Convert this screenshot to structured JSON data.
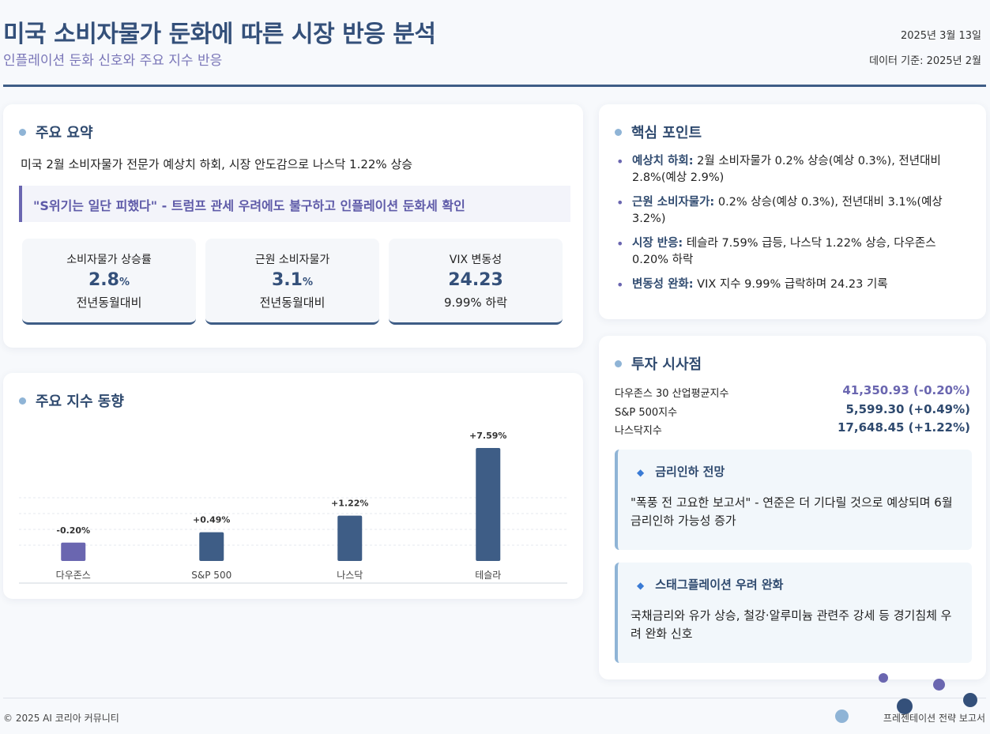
{
  "header": {
    "title": "미국 소비자물가 둔화에 따른 시장 반응 분석",
    "subtitle": "인플레이션 둔화 신호와 주요 지수 반응",
    "date": "2025년 3월 13일",
    "data_basis": "데이터 기준: 2025년 2월"
  },
  "summary": {
    "title": "주요 요약",
    "text": "미국 2월 소비자물가 전문가 예상치 하회, 시장 안도감으로 나스닥 1.22% 상승",
    "quote": "\"S위기는 일단 피했다\" - 트럼프 관세 우려에도 불구하고 인플레이션 둔화세 확인",
    "stats": [
      {
        "label": "소비자물가 상승률",
        "value": "2.8",
        "unit": "%",
        "sub": "전년동월대비"
      },
      {
        "label": "근원 소비자물가",
        "value": "3.1",
        "unit": "%",
        "sub": "전년동월대비"
      },
      {
        "label": "VIX 변동성",
        "value": "24.23",
        "unit": "",
        "sub": "9.99% 하락"
      }
    ]
  },
  "indices": {
    "title": "주요 지수 동향"
  },
  "chart_data": {
    "type": "bar",
    "categories": [
      "다우존스",
      "S&P 500",
      "나스닥",
      "테슬라"
    ],
    "values": [
      -0.2,
      0.49,
      1.22,
      7.59
    ],
    "data_labels": [
      "-0.20%",
      "+0.49%",
      "+1.22%",
      "+7.59%"
    ],
    "colors": [
      "#6a66b0",
      "#3e5d86",
      "#3e5d86",
      "#3e5d86"
    ],
    "grid": true,
    "legend": "none"
  },
  "points": {
    "title": "핵심 포인트",
    "items": [
      {
        "bold": "예상치 하회:",
        "text": " 2월 소비자물가 0.2% 상승(예상 0.3%), 전년대비 2.8%(예상 2.9%)"
      },
      {
        "bold": "근원 소비자물가:",
        "text": " 0.2% 상승(예상 0.3%), 전년대비 3.1%(예상 3.2%)"
      },
      {
        "bold": "시장 반응:",
        "text": " 테슬라 7.59% 급등, 나스닥 1.22% 상승, 다우존스 0.20% 하락"
      },
      {
        "bold": "변동성 완화:",
        "text": " VIX 지수 9.99% 급락하며 24.23 기록"
      }
    ]
  },
  "invest": {
    "title": "투자 시사점",
    "indices": [
      {
        "name": "다우존스 30 산업평균지수",
        "value": "41,350.93 (-0.20%)",
        "color": "#6a66b0"
      },
      {
        "name": "S&P 500지수",
        "value": "5,599.30 (+0.49%)",
        "color": "#2f4a6f"
      },
      {
        "name": "나스닥지수",
        "value": "17,648.45 (+1.22%)",
        "color": "#2f4a6f"
      }
    ],
    "callouts": [
      {
        "title": "금리인하 전망",
        "text": "\"폭풍 전 고요한 보고서\" - 연준은 더 기다릴 것으로 예상되며 6월 금리인하 가능성 증가"
      },
      {
        "title": "스태그플레이션 우려 완화",
        "text": "국채금리와 유가 상승, 철강·알루미늄 관련주 강세 등 경기침체 우려 완화 신호"
      }
    ]
  },
  "footer": {
    "copyright": "© 2025 AI 코리아 커뮤니티",
    "right": "프레젠테이션 전략 보고서"
  }
}
